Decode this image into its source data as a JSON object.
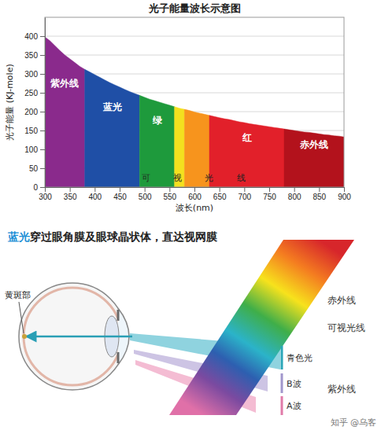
{
  "chart_data": {
    "type": "area",
    "title": "光子能量波长示意图",
    "x_label": "波长(nm)",
    "y_label": "光子能量 (KJ-mole)",
    "xlim": [
      300,
      900
    ],
    "ylim": [
      0,
      450
    ],
    "xticks": [
      300,
      350,
      400,
      450,
      500,
      550,
      600,
      650,
      700,
      750,
      800,
      850,
      900
    ],
    "yticks": [
      0,
      50,
      100,
      150,
      200,
      250,
      300,
      350,
      400
    ],
    "grid": true,
    "annotations": [
      "可",
      "视",
      "光",
      "线"
    ],
    "series": [
      {
        "name": "紫外线",
        "color": "#8a2a8c",
        "x": [
          300,
          310,
          320,
          330,
          340,
          350,
          360,
          370,
          380
        ],
        "values": [
          398,
          388,
          375,
          362,
          350,
          340,
          330,
          320,
          312
        ]
      },
      {
        "name": "蓝光",
        "color": "#1f4fa6",
        "x": [
          380,
          390,
          400,
          410,
          420,
          430,
          440,
          450,
          460,
          470,
          480,
          490
        ],
        "values": [
          312,
          305,
          298,
          291,
          284,
          277,
          271,
          265,
          259,
          253,
          248,
          243
        ]
      },
      {
        "name": "绿",
        "color": "#1e9a3c",
        "x": [
          490,
          500,
          510,
          520,
          530,
          540,
          550,
          560
        ],
        "values": [
          243,
          238,
          233,
          229,
          225,
          221,
          217,
          213
        ]
      },
      {
        "color": "#f3e01f",
        "x": [
          560,
          570,
          580
        ],
        "values": [
          213,
          209,
          206
        ]
      },
      {
        "color": "#f7941d",
        "x": [
          580,
          590,
          600,
          610,
          620,
          630
        ],
        "values": [
          206,
          203,
          199,
          196,
          193,
          190
        ]
      },
      {
        "name": "红",
        "color": "#e2202a",
        "x": [
          630,
          640,
          650,
          660,
          670,
          680,
          690,
          700,
          710,
          720,
          730,
          740,
          750,
          760,
          770,
          780
        ],
        "values": [
          190,
          187,
          184,
          181,
          179,
          176,
          173,
          171,
          168,
          166,
          164,
          162,
          160,
          158,
          156,
          154
        ]
      },
      {
        "name": "赤外线",
        "color": "#b3121c",
        "x": [
          780,
          790,
          800,
          810,
          820,
          830,
          840,
          850,
          860,
          870,
          880,
          890,
          900
        ],
        "values": [
          154,
          152,
          150,
          148,
          146,
          145,
          143,
          141,
          139,
          138,
          136,
          135,
          133
        ]
      }
    ]
  },
  "diagram": {
    "title_highlight": "蓝光",
    "title": "穿过眼角膜及眼球晶状体，直达视网膜",
    "macula": "黄斑部",
    "spectrum_labels": [
      "赤外线",
      "可视光线",
      "紫外线"
    ],
    "beam_labels": [
      "青色光",
      "B波",
      "A波"
    ]
  },
  "watermark": "知乎 @乌客"
}
